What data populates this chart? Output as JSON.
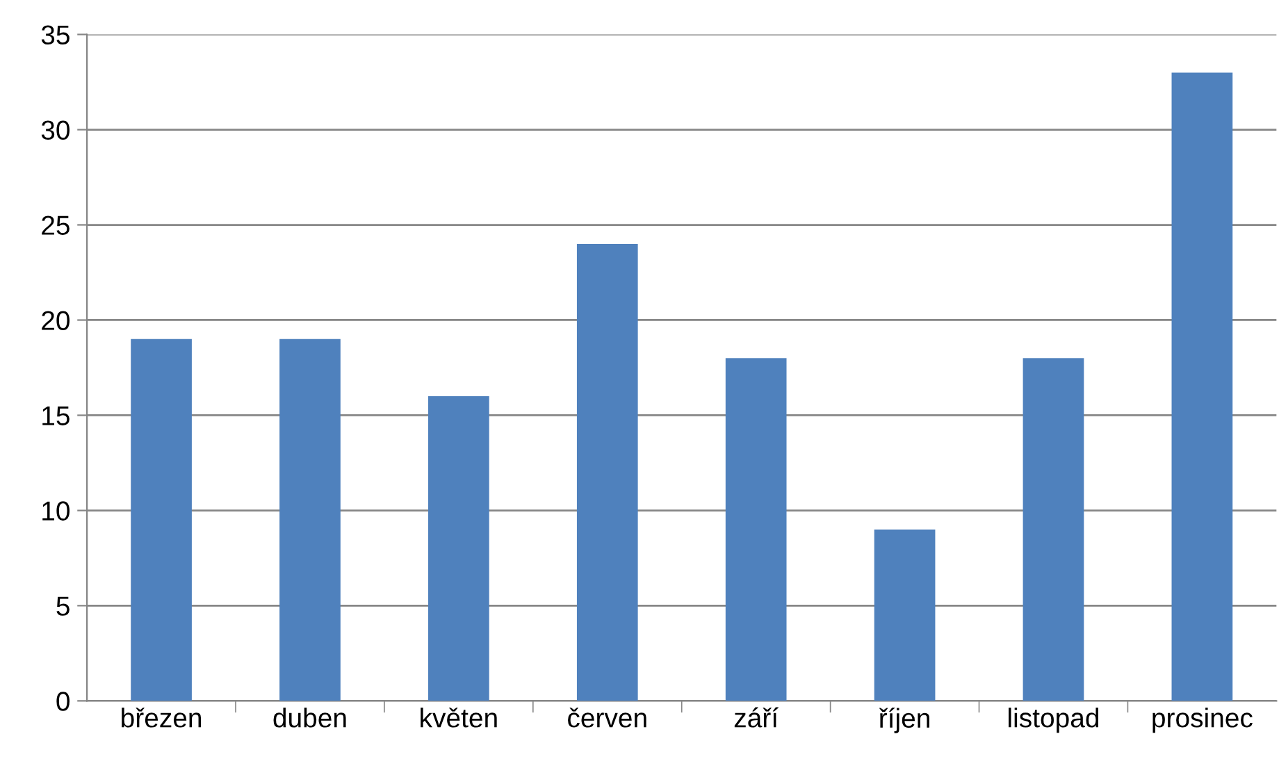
{
  "chart_data": {
    "type": "bar",
    "categories": [
      "březen",
      "duben",
      "květen",
      "červen",
      "září",
      "říjen",
      "listopad",
      "prosinec"
    ],
    "values": [
      19,
      19,
      16,
      24,
      18,
      9,
      18,
      33
    ],
    "color": "#4f81bd",
    "ylim": [
      0,
      35
    ],
    "yticks": [
      0,
      5,
      10,
      15,
      20,
      25,
      30,
      35
    ],
    "grid": "y",
    "legend": false
  }
}
